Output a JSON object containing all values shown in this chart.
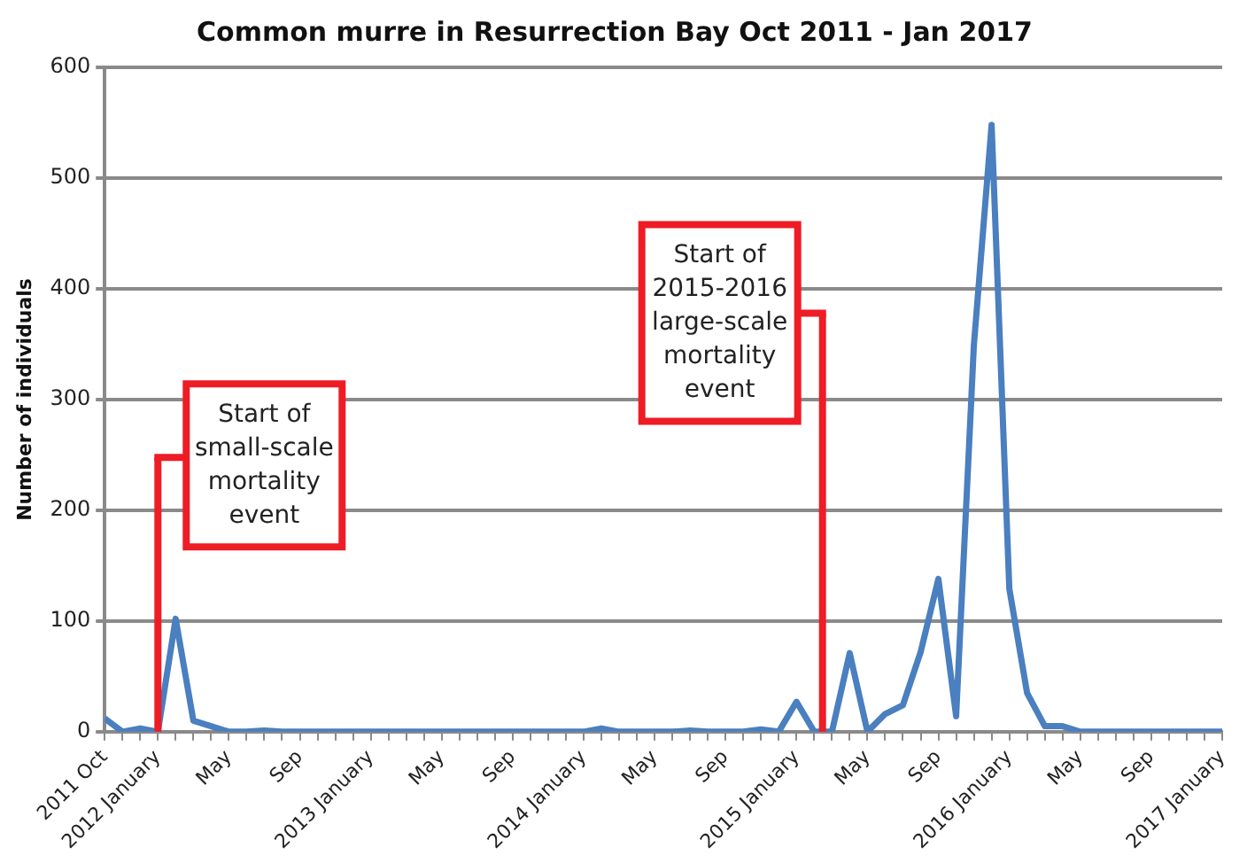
{
  "chart_data": {
    "type": "line",
    "title": "Common murre in Resurrection Bay Oct 2011 - Jan 2017",
    "ylabel": "Number of individuals",
    "x": [
      "2011-10",
      "2011-11",
      "2011-12",
      "2012-01",
      "2012-02",
      "2012-03",
      "2012-04",
      "2012-05",
      "2012-06",
      "2012-07",
      "2012-08",
      "2012-09",
      "2012-10",
      "2012-11",
      "2012-12",
      "2013-01",
      "2013-02",
      "2013-03",
      "2013-04",
      "2013-05",
      "2013-06",
      "2013-07",
      "2013-08",
      "2013-09",
      "2013-10",
      "2013-11",
      "2013-12",
      "2014-01",
      "2014-02",
      "2014-03",
      "2014-04",
      "2014-05",
      "2014-06",
      "2014-07",
      "2014-08",
      "2014-09",
      "2014-10",
      "2014-11",
      "2014-12",
      "2015-01",
      "2015-02",
      "2015-03",
      "2015-04",
      "2015-05",
      "2015-06",
      "2015-07",
      "2015-08",
      "2015-09",
      "2015-10",
      "2015-11",
      "2015-12",
      "2016-01",
      "2016-02",
      "2016-03",
      "2016-04",
      "2016-05",
      "2016-06",
      "2016-07",
      "2016-08",
      "2016-09",
      "2016-10",
      "2016-11",
      "2016-12",
      "2017-01"
    ],
    "series": [
      {
        "color": "#4a7fc0",
        "values": [
          12,
          0,
          3,
          0,
          102,
          10,
          5,
          0,
          0,
          1,
          0,
          0,
          0,
          0,
          0,
          0,
          0,
          0,
          0,
          0,
          0,
          0,
          0,
          0,
          0,
          0,
          0,
          0,
          3,
          0,
          0,
          0,
          0,
          1,
          0,
          0,
          0,
          2,
          0,
          27,
          0,
          0,
          71,
          0,
          16,
          24,
          72,
          138,
          14,
          349,
          548,
          129,
          35,
          5,
          5,
          0,
          0,
          0,
          0,
          0,
          0,
          0,
          0,
          0
        ]
      }
    ],
    "xlim": [
      "2011-10",
      "2017-01"
    ],
    "xticks": [
      {
        "value": "2011-10",
        "label": "2011 Oct"
      },
      {
        "value": "2011-11",
        "label": null
      },
      {
        "value": "2011-12",
        "label": null
      },
      {
        "value": "2012-01",
        "label": "2012 January"
      },
      {
        "value": "2012-02",
        "label": null
      },
      {
        "value": "2012-03",
        "label": null
      },
      {
        "value": "2012-04",
        "label": null
      },
      {
        "value": "2012-05",
        "label": "May"
      },
      {
        "value": "2012-06",
        "label": null
      },
      {
        "value": "2012-07",
        "label": null
      },
      {
        "value": "2012-08",
        "label": null
      },
      {
        "value": "2012-09",
        "label": "Sep"
      },
      {
        "value": "2012-10",
        "label": null
      },
      {
        "value": "2012-11",
        "label": null
      },
      {
        "value": "2012-12",
        "label": null
      },
      {
        "value": "2013-01",
        "label": "2013 January"
      },
      {
        "value": "2013-02",
        "label": null
      },
      {
        "value": "2013-03",
        "label": null
      },
      {
        "value": "2013-04",
        "label": null
      },
      {
        "value": "2013-05",
        "label": "May"
      },
      {
        "value": "2013-06",
        "label": null
      },
      {
        "value": "2013-07",
        "label": null
      },
      {
        "value": "2013-08",
        "label": null
      },
      {
        "value": "2013-09",
        "label": "Sep"
      },
      {
        "value": "2013-10",
        "label": null
      },
      {
        "value": "2013-11",
        "label": null
      },
      {
        "value": "2013-12",
        "label": null
      },
      {
        "value": "2014-01",
        "label": "2014 January"
      },
      {
        "value": "2014-02",
        "label": null
      },
      {
        "value": "2014-03",
        "label": null
      },
      {
        "value": "2014-04",
        "label": null
      },
      {
        "value": "2014-05",
        "label": "May"
      },
      {
        "value": "2014-06",
        "label": null
      },
      {
        "value": "2014-07",
        "label": null
      },
      {
        "value": "2014-08",
        "label": null
      },
      {
        "value": "2014-09",
        "label": "Sep"
      },
      {
        "value": "2014-10",
        "label": null
      },
      {
        "value": "2014-11",
        "label": null
      },
      {
        "value": "2014-12",
        "label": null
      },
      {
        "value": "2015-01",
        "label": "2015 January"
      },
      {
        "value": "2015-02",
        "label": null
      },
      {
        "value": "2015-03",
        "label": null
      },
      {
        "value": "2015-04",
        "label": null
      },
      {
        "value": "2015-05",
        "label": "May"
      },
      {
        "value": "2015-06",
        "label": null
      },
      {
        "value": "2015-07",
        "label": null
      },
      {
        "value": "2015-08",
        "label": null
      },
      {
        "value": "2015-09",
        "label": "Sep"
      },
      {
        "value": "2015-10",
        "label": null
      },
      {
        "value": "2015-11",
        "label": null
      },
      {
        "value": "2015-12",
        "label": null
      },
      {
        "value": "2016-01",
        "label": "2016 January"
      },
      {
        "value": "2016-02",
        "label": null
      },
      {
        "value": "2016-03",
        "label": null
      },
      {
        "value": "2016-04",
        "label": null
      },
      {
        "value": "2016-05",
        "label": "May"
      },
      {
        "value": "2016-06",
        "label": null
      },
      {
        "value": "2016-07",
        "label": null
      },
      {
        "value": "2016-08",
        "label": null
      },
      {
        "value": "2016-09",
        "label": "Sep"
      },
      {
        "value": "2016-10",
        "label": null
      },
      {
        "value": "2016-11",
        "label": null
      },
      {
        "value": "2016-12",
        "label": null
      },
      {
        "value": "2017-01",
        "label": "2017 January"
      }
    ],
    "ylim": [
      0,
      600
    ],
    "yticks": [
      0,
      100,
      200,
      300,
      400,
      500,
      600
    ],
    "grid": "y",
    "line_style": "solid",
    "marker": "none",
    "ref_lines": [
      {
        "axis": "x",
        "value": "2012-01",
        "label": "Start of small-scale mortality event",
        "color": "#ee1c25"
      },
      {
        "axis": "x",
        "value": "2015-02-15",
        "label": "Start of 2015-2016 large-scale mortality event",
        "color": "#ee1c25"
      }
    ]
  }
}
